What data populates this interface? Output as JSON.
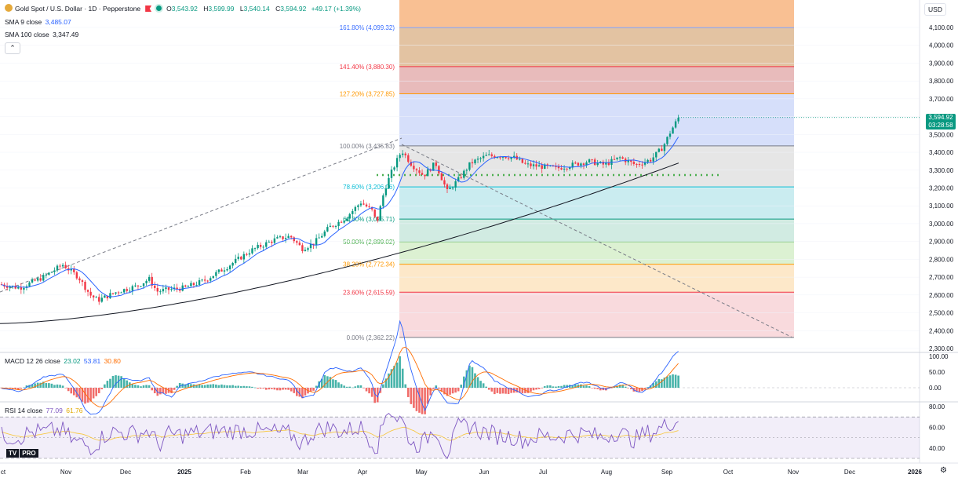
{
  "header": {
    "symbol": "Gold Spot / U.S. Dollar · 1D · Pepperstone",
    "ohlc": [
      {
        "label": "O",
        "value": "3,543.92"
      },
      {
        "label": "H",
        "value": "3,599.99"
      },
      {
        "label": "L",
        "value": "3,540.14"
      },
      {
        "label": "C",
        "value": "3,594.92"
      }
    ],
    "change": "+49.17 (+1.39%)"
  },
  "indicators": {
    "sma9": {
      "label": "SMA 9 close",
      "value": "3,485.07",
      "color": "#2962ff"
    },
    "sma100": {
      "label": "SMA 100 close",
      "value": "3,347.49",
      "color": "#131722"
    },
    "macd": {
      "label": "MACD 12 26 close",
      "values": [
        "23.02",
        "53.81",
        "30.80"
      ],
      "colors": [
        "#089981",
        "#2962ff",
        "#ff6d00"
      ]
    },
    "rsi": {
      "label": "RSI 14 close",
      "values": [
        "77.09",
        "61.76"
      ],
      "colors": [
        "#7e57c2",
        "#f7c948"
      ]
    }
  },
  "collapse_glyph": "⌃",
  "currency": "USD",
  "last_price": {
    "price": "3,594.92",
    "countdown": "03:28:58",
    "color": "#089981"
  },
  "price_axis": [
    "4,100.00",
    "4,000.00",
    "3,900.00",
    "3,800.00",
    "3,700.00",
    "3,600.00",
    "3,500.00",
    "3,400.00",
    "3,300.00",
    "3,200.00",
    "3,100.00",
    "3,000.00",
    "2,900.00",
    "2,800.00",
    "2,700.00",
    "2,600.00",
    "2,500.00",
    "2,400.00",
    "2,300.00"
  ],
  "macd_axis": [
    "100.00",
    "50.00",
    "0.00"
  ],
  "rsi_axis": [
    "80.00",
    "60.00",
    "40.00"
  ],
  "time_axis": [
    {
      "label": "ct",
      "bold": false
    },
    {
      "label": "Nov",
      "bold": false
    },
    {
      "label": "Dec",
      "bold": false
    },
    {
      "label": "2025",
      "bold": true
    },
    {
      "label": "Feb",
      "bold": false
    },
    {
      "label": "Mar",
      "bold": false
    },
    {
      "label": "Apr",
      "bold": false
    },
    {
      "label": "May",
      "bold": false
    },
    {
      "label": "Jun",
      "bold": false
    },
    {
      "label": "Jul",
      "bold": false
    },
    {
      "label": "Aug",
      "bold": false
    },
    {
      "label": "Sep",
      "bold": false
    },
    {
      "label": "Oct",
      "bold": false
    },
    {
      "label": "Nov",
      "bold": false
    },
    {
      "label": "Dec",
      "bold": false
    },
    {
      "label": "2026",
      "bold": true
    }
  ],
  "fib_levels": [
    {
      "ratio": "161.80%",
      "price": 4099.32,
      "label": "161.80% (4,099.32)",
      "line": "#2962ff",
      "fill": "#f8b580"
    },
    {
      "ratio": "141.40%",
      "price": 3880.3,
      "label": "141.40% (3,880.30)",
      "line": "#f23645",
      "fill": "#e0bc98"
    },
    {
      "ratio": "127.20%",
      "price": 3727.85,
      "label": "127.20% (3,727.85)",
      "line": "#ff9800",
      "fill": "#e6b4b4"
    },
    {
      "ratio": "100.00%",
      "price": 3435.83,
      "label": "100.00% (3,435.83)",
      "line": "#787b86",
      "fill": "#d2dcfa"
    },
    {
      "ratio": "78.60%",
      "price": 3206.06,
      "label": "78.60% (3,206.06)",
      "line": "#00bcd4",
      "fill": "#e3e3e3"
    },
    {
      "ratio": "61.80%",
      "price": 3025.71,
      "label": "61.80% (3,025.71)",
      "line": "#089981",
      "fill": "#c4eaee"
    },
    {
      "ratio": "50.00%",
      "price": 2899.02,
      "label": "50.00% (2,899.02)",
      "line": "#4caf50",
      "fill": "#cce9df"
    },
    {
      "ratio": "38.20%",
      "price": 2772.34,
      "label": "38.20% (2,772.34)",
      "line": "#ff9800",
      "fill": "#d8efcd"
    },
    {
      "ratio": "23.60%",
      "price": 2615.59,
      "label": "23.60% (2,615.59)",
      "line": "#f23645",
      "fill": "#fde6c3"
    },
    {
      "ratio": "0.00%",
      "price": 2362.22,
      "label": "0.00% (2,362.22)",
      "line": "#787b86",
      "fill": "#f8d6d9"
    }
  ],
  "fib_top_fill": "#f8b580",
  "colors": {
    "up": "#089981",
    "down": "#f23645",
    "sma9": "#2962ff",
    "sma100": "#131722",
    "support": "#4caf50"
  },
  "logo": {
    "mark": "TV",
    "pro": "PRO"
  },
  "settings_icon": "gear-icon"
}
